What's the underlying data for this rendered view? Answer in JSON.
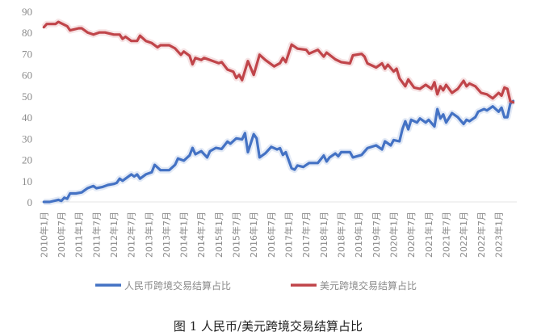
{
  "chart_data": {
    "type": "line",
    "title": "",
    "caption": "图 1 人民币/美元跨境交易结算占比",
    "xlabel": "",
    "ylabel": "",
    "ylim": [
      0,
      90
    ],
    "yticks": [
      0,
      10,
      20,
      30,
      40,
      50,
      60,
      70,
      80,
      90
    ],
    "xticks": [
      "2010年1月",
      "2010年7月",
      "2011年1月",
      "2011年7月",
      "2012年1月",
      "2012年7月",
      "2013年1月",
      "2013年7月",
      "2014年1月",
      "2014年7月",
      "2015年1月",
      "2015年7月",
      "2016年1月",
      "2016年7月",
      "2017年1月",
      "2017年7月",
      "2018年1月",
      "2018年7月",
      "2019年1月",
      "2019年7月",
      "2020年1月",
      "2020年7月",
      "2021年1月",
      "2021年7月",
      "2022年1月",
      "2022年7月",
      "2023年1月"
    ],
    "grid": false,
    "legend_position": "bottom",
    "series": [
      {
        "name": "人民币跨境交易结算占比",
        "color": "#4472c4",
        "points": [
          [
            "2010-01",
            0
          ],
          [
            "2010-03",
            0
          ],
          [
            "2010-06",
            1
          ],
          [
            "2010-07",
            0.5
          ],
          [
            "2010-08",
            2
          ],
          [
            "2010-09",
            1.5
          ],
          [
            "2010-10",
            4
          ],
          [
            "2010-12",
            4
          ],
          [
            "2011-02",
            4.5
          ],
          [
            "2011-03",
            5.5
          ],
          [
            "2011-04",
            6.5
          ],
          [
            "2011-06",
            7.5
          ],
          [
            "2011-07",
            6.5
          ],
          [
            "2011-09",
            7
          ],
          [
            "2011-11",
            8
          ],
          [
            "2012-01",
            8.5
          ],
          [
            "2012-02",
            9
          ],
          [
            "2012-03",
            11
          ],
          [
            "2012-04",
            10
          ],
          [
            "2012-05",
            11
          ],
          [
            "2012-07",
            13
          ],
          [
            "2012-08",
            12
          ],
          [
            "2012-09",
            13
          ],
          [
            "2012-10",
            11
          ],
          [
            "2012-12",
            13
          ],
          [
            "2013-02",
            14
          ],
          [
            "2013-03",
            17.5
          ],
          [
            "2013-05",
            15
          ],
          [
            "2013-08",
            15
          ],
          [
            "2013-10",
            17.5
          ],
          [
            "2013-11",
            20.5
          ],
          [
            "2014-01",
            19.5
          ],
          [
            "2014-03",
            22
          ],
          [
            "2014-04",
            25.5
          ],
          [
            "2014-05",
            22.5
          ],
          [
            "2014-07",
            24
          ],
          [
            "2014-09",
            21
          ],
          [
            "2014-10",
            24
          ],
          [
            "2014-12",
            25.5
          ],
          [
            "2015-02",
            25
          ],
          [
            "2015-04",
            28.5
          ],
          [
            "2015-05",
            27.5
          ],
          [
            "2015-07",
            30
          ],
          [
            "2015-09",
            29.5
          ],
          [
            "2015-10",
            32.5
          ],
          [
            "2015-11",
            23.5
          ],
          [
            "2016-01",
            32
          ],
          [
            "2016-02",
            30
          ],
          [
            "2016-03",
            21
          ],
          [
            "2016-05",
            23
          ],
          [
            "2016-07",
            26
          ],
          [
            "2016-09",
            24.8
          ],
          [
            "2016-10",
            25.4
          ],
          [
            "2016-11",
            22.2
          ],
          [
            "2016-12",
            23.5
          ],
          [
            "2017-02",
            15.9
          ],
          [
            "2017-03",
            15.2
          ],
          [
            "2017-04",
            17.2
          ],
          [
            "2017-06",
            16.5
          ],
          [
            "2017-08",
            18.4
          ],
          [
            "2017-11",
            18.4
          ],
          [
            "2018-01",
            21.9
          ],
          [
            "2018-02",
            19.1
          ],
          [
            "2018-03",
            21
          ],
          [
            "2018-05",
            22.9
          ],
          [
            "2018-06",
            21.6
          ],
          [
            "2018-07",
            23.5
          ],
          [
            "2018-10",
            23.5
          ],
          [
            "2018-11",
            21
          ],
          [
            "2019-02",
            22.2
          ],
          [
            "2019-04",
            25.4
          ],
          [
            "2019-07",
            26.7
          ],
          [
            "2019-09",
            24.8
          ],
          [
            "2019-10",
            28.6
          ],
          [
            "2019-12",
            26.7
          ],
          [
            "2020-01",
            29.2
          ],
          [
            "2020-03",
            28.6
          ],
          [
            "2020-04",
            34.3
          ],
          [
            "2020-05",
            38.1
          ],
          [
            "2020-06",
            34.3
          ],
          [
            "2020-07",
            38.8
          ],
          [
            "2020-09",
            37.5
          ],
          [
            "2020-10",
            39.4
          ],
          [
            "2020-12",
            37.5
          ],
          [
            "2021-01",
            38.8
          ],
          [
            "2021-03",
            35.6
          ],
          [
            "2021-04",
            43.8
          ],
          [
            "2021-05",
            39.4
          ],
          [
            "2021-06",
            41.3
          ],
          [
            "2021-07",
            37.5
          ],
          [
            "2021-09",
            41.9
          ],
          [
            "2021-11",
            40
          ],
          [
            "2022-01",
            36.8
          ],
          [
            "2022-02",
            38.8
          ],
          [
            "2022-03",
            38.1
          ],
          [
            "2022-05",
            40
          ],
          [
            "2022-06",
            42.6
          ],
          [
            "2022-08",
            43.8
          ],
          [
            "2022-09",
            43.2
          ],
          [
            "2022-11",
            45.1
          ],
          [
            "2023-01",
            42.6
          ],
          [
            "2023-02",
            44.5
          ],
          [
            "2023-03",
            40
          ],
          [
            "2023-04",
            40
          ],
          [
            "2023-05",
            46.4
          ],
          [
            "2023-06",
            47.6
          ]
        ]
      },
      {
        "name": "美元跨境交易结算占比",
        "color": "#c0454a",
        "points": [
          [
            "2010-01",
            82.5
          ],
          [
            "2010-02",
            84
          ],
          [
            "2010-05",
            84
          ],
          [
            "2010-06",
            85
          ],
          [
            "2010-09",
            83
          ],
          [
            "2010-10",
            81
          ],
          [
            "2011-01",
            82
          ],
          [
            "2011-02",
            82
          ],
          [
            "2011-04",
            80
          ],
          [
            "2011-06",
            79
          ],
          [
            "2011-08",
            80
          ],
          [
            "2011-10",
            80
          ],
          [
            "2012-01",
            79
          ],
          [
            "2012-03",
            79
          ],
          [
            "2012-04",
            77
          ],
          [
            "2012-05",
            78
          ],
          [
            "2012-07",
            76
          ],
          [
            "2012-09",
            76
          ],
          [
            "2012-10",
            78.5
          ],
          [
            "2012-12",
            76
          ],
          [
            "2013-02",
            75
          ],
          [
            "2013-04",
            73
          ],
          [
            "2013-05",
            74
          ],
          [
            "2013-08",
            74
          ],
          [
            "2013-10",
            72.5
          ],
          [
            "2013-12",
            69.5
          ],
          [
            "2014-01",
            71
          ],
          [
            "2014-03",
            69
          ],
          [
            "2014-04",
            65
          ],
          [
            "2014-05",
            68
          ],
          [
            "2014-07",
            67
          ],
          [
            "2014-08",
            68
          ],
          [
            "2014-11",
            66.5
          ],
          [
            "2015-01",
            65.5
          ],
          [
            "2015-02",
            66
          ],
          [
            "2015-04",
            62.5
          ],
          [
            "2015-06",
            61.5
          ],
          [
            "2015-07",
            58.5
          ],
          [
            "2015-08",
            60
          ],
          [
            "2015-09",
            57.5
          ],
          [
            "2015-11",
            66.5
          ],
          [
            "2016-01",
            60
          ],
          [
            "2016-03",
            69.5
          ],
          [
            "2016-05",
            67
          ],
          [
            "2016-08",
            64
          ],
          [
            "2016-10",
            65.5
          ],
          [
            "2016-11",
            68
          ],
          [
            "2016-12",
            66
          ],
          [
            "2017-02",
            74.3
          ],
          [
            "2017-04",
            72.4
          ],
          [
            "2017-07",
            71.8
          ],
          [
            "2017-08",
            70
          ],
          [
            "2017-11",
            71.8
          ],
          [
            "2018-01",
            68.6
          ],
          [
            "2018-02",
            70.5
          ],
          [
            "2018-05",
            67.3
          ],
          [
            "2018-07",
            66
          ],
          [
            "2018-10",
            65.4
          ],
          [
            "2018-11",
            69.2
          ],
          [
            "2019-02",
            69.9
          ],
          [
            "2019-03",
            68.6
          ],
          [
            "2019-04",
            65.4
          ],
          [
            "2019-07",
            63.5
          ],
          [
            "2019-09",
            65.4
          ],
          [
            "2019-10",
            62.9
          ],
          [
            "2019-11",
            64.8
          ],
          [
            "2020-01",
            61.6
          ],
          [
            "2020-02",
            62.9
          ],
          [
            "2020-03",
            58.4
          ],
          [
            "2020-05",
            54.6
          ],
          [
            "2020-06",
            57.8
          ],
          [
            "2020-08",
            54
          ],
          [
            "2020-10",
            53.4
          ],
          [
            "2020-12",
            55.3
          ],
          [
            "2021-02",
            53.4
          ],
          [
            "2021-03",
            56.5
          ],
          [
            "2021-04",
            50.8
          ],
          [
            "2021-05",
            54.6
          ],
          [
            "2021-06",
            52.7
          ],
          [
            "2021-07",
            55.3
          ],
          [
            "2021-09",
            51.5
          ],
          [
            "2021-11",
            53.4
          ],
          [
            "2022-01",
            57.2
          ],
          [
            "2022-02",
            54.6
          ],
          [
            "2022-03",
            55.9
          ],
          [
            "2022-05",
            54.6
          ],
          [
            "2022-07",
            51.5
          ],
          [
            "2022-09",
            50.8
          ],
          [
            "2022-11",
            48.9
          ],
          [
            "2023-01",
            51.5
          ],
          [
            "2023-02",
            50.2
          ],
          [
            "2023-03",
            54
          ],
          [
            "2023-04",
            53.4
          ],
          [
            "2023-05",
            47.6
          ],
          [
            "2023-06",
            47
          ]
        ]
      }
    ]
  }
}
